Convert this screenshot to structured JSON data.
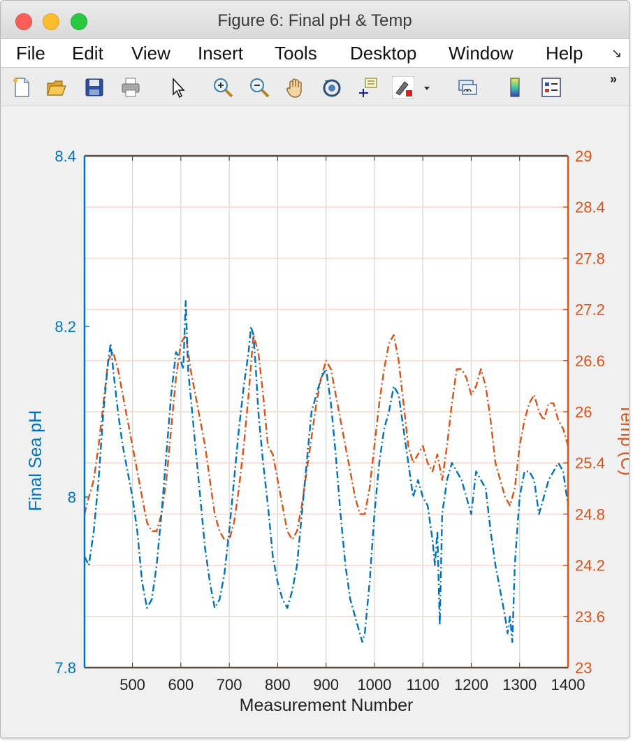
{
  "window": {
    "title": "Figure 6: Final pH & Temp"
  },
  "menu": [
    "File",
    "Edit",
    "View",
    "Insert",
    "Tools",
    "Desktop",
    "Window",
    "Help"
  ],
  "toolbar": [
    {
      "name": "new-figure-icon"
    },
    {
      "name": "open-file-icon"
    },
    {
      "name": "save-icon"
    },
    {
      "name": "print-icon"
    },
    {
      "name": "pointer-icon"
    },
    {
      "name": "zoom-in-icon"
    },
    {
      "name": "zoom-out-icon"
    },
    {
      "name": "pan-hand-icon"
    },
    {
      "name": "rotate-3d-icon"
    },
    {
      "name": "data-cursor-icon"
    },
    {
      "name": "brush-icon"
    },
    {
      "name": "link-plot-icon"
    },
    {
      "name": "colorbar-icon"
    },
    {
      "name": "legend-icon"
    }
  ],
  "chart_data": {
    "type": "line",
    "xlabel": "Measurement Number",
    "ylabel_left": "Final Sea pH",
    "ylabel_right": "Temp (C)",
    "xlim": [
      401,
      1400
    ],
    "ylim_left": [
      7.8,
      8.4
    ],
    "ylim_right": [
      23,
      29
    ],
    "xticks": [
      "500",
      "600",
      "700",
      "800",
      "900",
      "1000",
      "1100",
      "1200",
      "1300",
      "1400"
    ],
    "yticks_left": [
      "7.8",
      "8",
      "8.2",
      "8.4"
    ],
    "yticks_right": [
      "23",
      "23.6",
      "24.2",
      "24.8",
      "25.4",
      "26",
      "26.6",
      "27.2",
      "27.8",
      "28.4",
      "29"
    ],
    "grid": "on",
    "colors": {
      "left_axis": "#0072BD",
      "right_axis": "#D95319",
      "box": "#5a4a42"
    },
    "series": [
      {
        "name": "Final Sea pH",
        "axis": "left",
        "style": "dash-dot",
        "x": [
          401,
          410,
          420,
          430,
          440,
          450,
          455,
          460,
          470,
          480,
          490,
          500,
          510,
          520,
          530,
          540,
          550,
          560,
          570,
          580,
          590,
          600,
          605,
          610,
          615,
          620,
          630,
          640,
          650,
          660,
          670,
          680,
          690,
          700,
          710,
          720,
          730,
          740,
          745,
          750,
          755,
          760,
          770,
          780,
          790,
          800,
          810,
          820,
          830,
          840,
          850,
          860,
          870,
          880,
          890,
          900,
          910,
          920,
          930,
          940,
          950,
          960,
          970,
          975,
          980,
          990,
          1000,
          1010,
          1020,
          1030,
          1040,
          1050,
          1060,
          1070,
          1080,
          1090,
          1100,
          1110,
          1120,
          1125,
          1130,
          1135,
          1140,
          1150,
          1160,
          1170,
          1180,
          1190,
          1200,
          1210,
          1220,
          1230,
          1240,
          1250,
          1260,
          1270,
          1275,
          1280,
          1285,
          1290,
          1300,
          1310,
          1320,
          1330,
          1340,
          1350,
          1360,
          1370,
          1380,
          1390,
          1400
        ],
        "values": [
          7.93,
          7.92,
          7.96,
          8.02,
          8.1,
          8.16,
          8.18,
          8.15,
          8.1,
          8.06,
          8.03,
          8.0,
          7.96,
          7.9,
          7.87,
          7.88,
          7.92,
          7.98,
          8.05,
          8.12,
          8.17,
          8.16,
          8.15,
          8.23,
          8.15,
          8.12,
          8.06,
          8.0,
          7.94,
          7.9,
          7.87,
          7.88,
          7.91,
          7.96,
          8.02,
          8.08,
          8.13,
          8.17,
          8.2,
          8.19,
          8.15,
          8.1,
          8.04,
          7.99,
          7.93,
          7.9,
          7.88,
          7.87,
          7.89,
          7.92,
          7.98,
          8.04,
          8.1,
          8.12,
          8.14,
          8.15,
          8.11,
          8.05,
          7.98,
          7.92,
          7.88,
          7.86,
          7.84,
          7.83,
          7.84,
          7.9,
          7.98,
          8.04,
          8.08,
          8.1,
          8.13,
          8.12,
          8.08,
          8.04,
          8.0,
          8.02,
          8.0,
          7.99,
          7.95,
          7.92,
          7.96,
          7.85,
          7.98,
          8.02,
          8.04,
          8.03,
          8.02,
          8.0,
          7.98,
          8.03,
          8.02,
          8.01,
          7.96,
          7.92,
          7.89,
          7.86,
          7.84,
          7.86,
          7.83,
          7.92,
          8.0,
          8.03,
          8.03,
          8.02,
          7.98,
          8.0,
          8.02,
          8.03,
          8.04,
          8.03,
          7.99
        ]
      },
      {
        "name": "Temp (C)",
        "axis": "right",
        "style": "dash-dot",
        "x": [
          401,
          410,
          420,
          430,
          440,
          450,
          460,
          470,
          480,
          490,
          500,
          510,
          520,
          530,
          540,
          550,
          560,
          570,
          580,
          590,
          600,
          610,
          620,
          630,
          640,
          650,
          660,
          670,
          680,
          690,
          700,
          710,
          720,
          730,
          740,
          750,
          760,
          770,
          780,
          790,
          800,
          810,
          820,
          830,
          840,
          850,
          860,
          870,
          880,
          890,
          900,
          910,
          920,
          930,
          940,
          950,
          960,
          970,
          980,
          990,
          1000,
          1010,
          1020,
          1030,
          1040,
          1050,
          1060,
          1070,
          1080,
          1090,
          1100,
          1110,
          1120,
          1130,
          1140,
          1150,
          1160,
          1170,
          1180,
          1190,
          1200,
          1210,
          1220,
          1230,
          1240,
          1250,
          1260,
          1270,
          1280,
          1290,
          1300,
          1310,
          1320,
          1330,
          1340,
          1350,
          1360,
          1370,
          1380,
          1390,
          1400
        ],
        "values": [
          24.8,
          25.0,
          25.2,
          25.6,
          26.1,
          26.6,
          26.7,
          26.5,
          26.2,
          25.9,
          25.6,
          25.3,
          25.0,
          24.7,
          24.6,
          24.6,
          24.8,
          25.2,
          25.8,
          26.4,
          26.8,
          26.9,
          26.5,
          26.2,
          25.9,
          25.6,
          25.2,
          24.8,
          24.6,
          24.5,
          24.5,
          24.7,
          25.1,
          25.6,
          26.2,
          26.9,
          26.7,
          26.2,
          25.6,
          25.5,
          25.2,
          24.9,
          24.6,
          24.5,
          24.6,
          24.9,
          25.3,
          25.7,
          26.1,
          26.4,
          26.6,
          26.5,
          26.2,
          25.9,
          25.6,
          25.3,
          25.0,
          24.8,
          24.8,
          25.1,
          25.6,
          26.1,
          26.5,
          26.8,
          26.9,
          26.6,
          26.1,
          25.6,
          25.4,
          25.5,
          25.6,
          25.4,
          25.3,
          25.5,
          25.2,
          25.6,
          26.1,
          26.5,
          26.5,
          26.4,
          26.2,
          26.3,
          26.5,
          26.3,
          25.9,
          25.4,
          25.2,
          25.0,
          24.9,
          25.1,
          25.6,
          25.9,
          26.1,
          26.2,
          26.0,
          25.9,
          26.1,
          26.1,
          25.9,
          25.8,
          25.6
        ]
      }
    ]
  }
}
